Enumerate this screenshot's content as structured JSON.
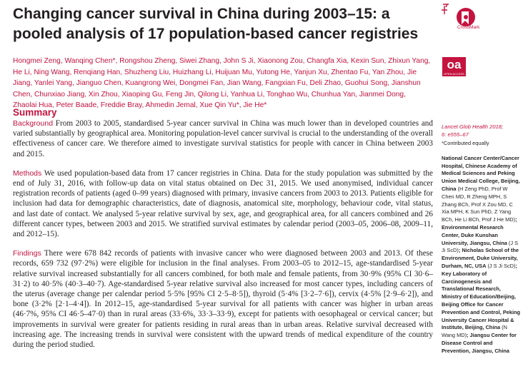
{
  "article": {
    "title": "Changing cancer survival in China during 2003–15: a pooled analysis of 17 population-based cancer registries",
    "authors": "Hongmei Zeng, Wanqing Chen*, Rongshou Zheng, Siwei Zhang, John S Ji, Xiaonong Zou, Changfa Xia, Kexin Sun, Zhixun Yang, He Li, Ning Wang, Renqiang Han, Shuzheng Liu, Huizhang Li, Huijuan Mu, Yutong He, Yanjun Xu, Zhentao Fu, Yan Zhou, Jie Jiang, Yanlei Yang, Jianguo Chen, Kuangrong Wei, Dongmei Fan, Jian Wang, Fangxian Fu, Deli Zhao, Guohui Song, Jianshun Chen, Chunxiao Jiang, Xin Zhou, Xiaoping Gu, Feng Jin, Qilong Li, Yanhua Li, Tonghao Wu, Chunhua Yan, Jianmei Dong, Zhaolai Hua, Peter Baade, Freddie Bray, Ahmedin Jemal, Xue Qin Yu*, Jie He*"
  },
  "logos": {
    "crossmark_label": "CrossMark",
    "oa_label": "oa",
    "oa_sub": "OPEN ACCESS",
    "accent_color": "#c5133f"
  },
  "summary": {
    "heading": "Summary",
    "background_label": "Background",
    "background_text": " From 2003 to 2005, standardised 5-year cancer survival in China was much lower than in developed countries and varied substantially by geographical area. Monitoring population-level cancer survival is crucial to the understanding of the overall effectiveness of cancer care. We therefore aimed to investigate survival statistics for people with cancer in China between 2003 and 2015.",
    "methods_label": "Methods",
    "methods_text": " We used population-based data from 17 cancer registries in China. Data for the study population was submitted by the end of July 31, 2016, with follow-up data on vital status obtained on Dec 31, 2015. We used anonymised, individual cancer registration records of patients (aged 0–99 years) diagnosed with primary, invasive cancers from 2003 to 2013. Patients eligible for inclusion had data for demographic characteristics, date of diagnosis, anatomical site, morphology, behaviour code, vital status, and last date of contact. We analysed 5-year relative survival by sex, age, and geographical area, for all cancers combined and 26 different cancer types, between 2003 and 2015. We stratified survival estimates by calendar period (2003–05, 2006–08, 2009–11, and 2012–15).",
    "findings_label": "Findings",
    "findings_text": " There were 678 842 records of patients with invasive cancer who were diagnosed between 2003 and 2013. Of these records, 659 732 (97·2%) were eligible for inclusion in the final analyses. From 2003–05 to 2012–15, age-standardised 5-year relative survival increased substantially for all cancers combined, for both male and female patients, from 30·9% (95% CI 30·6–31·2) to 40·5% (40·3–40·7). Age-standardised 5-year relative survival also increased for most cancer types, including cancers of the uterus (average change per calendar period 5·5% [95% CI 2·5–8·5]), thyroid (5·4% [3·2–7·6]), cervix (4·5% [2·9–6·2]), and bone (3·2% [2·1–4·4]). In 2012–15, age-standardised 5-year survival for all patients with cancer was higher in urban areas (46·7%, 95% CI 46·5–47·0) than in rural areas (33·6%, 33·3–33·9), except for patients with oesophageal or cervical cancer; but improvements in survival were greater for patients residing in rural areas than in urban areas. Relative survival decreased with increasing age. The increasing trends in survival were consistent with the upward trends of medical expenditure of the country during the period studied."
  },
  "sidebar": {
    "citation_line1": "Lancet Glob Health 2018;",
    "citation_line2": "6: e555–67",
    "contributed_note": "*Contributed equally",
    "affiliations": [
      {
        "bold": "National Cancer Center/Cancer Hospital, Chinese Academy of Medical Sciences and Peking Union Medical College, Beijing, China",
        "plain": " (H Zeng PhD, Prof W Chen MD, R Zheng MPH, S Zhang BCh, Prof X Zou MD, C Xia MPH, K Sun PhD, Z Yang BCh, He Li BCh, Prof J He MD)"
      },
      {
        "bold": "; Environmental Research Center, Duke Kunshan University, Jiangsu, China",
        "plain": " (J S Ji ScD)"
      },
      {
        "bold": "; Nicholas School of the Environment, Duke University, Durham, NC, USA",
        "plain": " (J S Ji ScD)"
      },
      {
        "bold": "; Key Laboratory of Carcinogenesis and Translational Research, Ministry of Education/Beijing, Beijing Office for Cancer Prevention and Control, Peking University Cancer Hospital & Institute, Beijing, China",
        "plain": " (N Wang MD)"
      },
      {
        "bold": "; Jiangsu Center for Disease Control and Prevention, Jiangsu, China",
        "plain": ""
      }
    ]
  }
}
